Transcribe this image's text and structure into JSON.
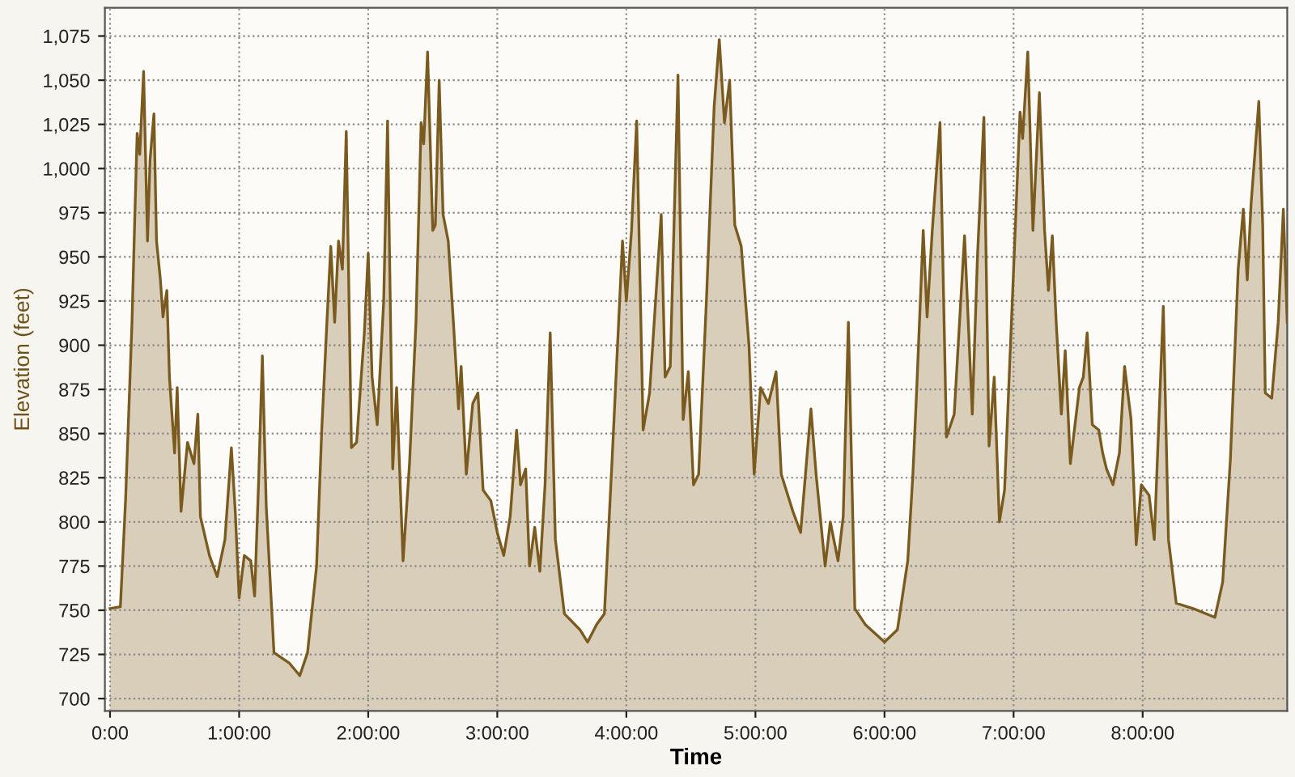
{
  "chart_data": {
    "type": "area",
    "xlabel": "Time",
    "ylabel": "Elevation (feet)",
    "series": [
      {
        "color": "#7a5a1e",
        "x": [
          0,
          0.08,
          0.12,
          0.17,
          0.19,
          0.21,
          0.23,
          0.26,
          0.29,
          0.31,
          0.34,
          0.36,
          0.39,
          0.41,
          0.44,
          0.46,
          0.5,
          0.52,
          0.55,
          0.6,
          0.65,
          0.68,
          0.7,
          0.77,
          0.83,
          0.89,
          0.94,
          0.97,
          1.0,
          1.04,
          1.09,
          1.12,
          1.15,
          1.18,
          1.21,
          1.27,
          1.39,
          1.47,
          1.53,
          1.6,
          1.64,
          1.68,
          1.71,
          1.74,
          1.77,
          1.8,
          1.83,
          1.87,
          1.91,
          1.97,
          2.0,
          2.03,
          2.07,
          2.12,
          2.15,
          2.19,
          2.22,
          2.27,
          2.32,
          2.37,
          2.41,
          2.43,
          2.46,
          2.5,
          2.52,
          2.55,
          2.58,
          2.62,
          2.66,
          2.7,
          2.72,
          2.76,
          2.81,
          2.85,
          2.89,
          2.95,
          3.0,
          3.05,
          3.1,
          3.15,
          3.18,
          3.22,
          3.25,
          3.29,
          3.33,
          3.37,
          3.41,
          3.45,
          3.52,
          3.64,
          3.7,
          3.77,
          3.83,
          3.89,
          3.97,
          4.0,
          4.04,
          4.08,
          4.13,
          4.18,
          4.27,
          4.3,
          4.34,
          4.4,
          4.44,
          4.48,
          4.52,
          4.56,
          4.62,
          4.68,
          4.72,
          4.76,
          4.8,
          4.84,
          4.89,
          4.95,
          4.99,
          5.04,
          5.1,
          5.16,
          5.2,
          5.29,
          5.35,
          5.43,
          5.47,
          5.54,
          5.58,
          5.64,
          5.68,
          5.72,
          5.77,
          5.85,
          6.0,
          6.1,
          6.18,
          6.22,
          6.25,
          6.3,
          6.33,
          6.37,
          6.43,
          6.48,
          6.54,
          6.62,
          6.68,
          6.72,
          6.77,
          6.81,
          6.85,
          6.89,
          6.93,
          7.0,
          7.05,
          7.07,
          7.11,
          7.15,
          7.2,
          7.24,
          7.27,
          7.3,
          7.33,
          7.37,
          7.4,
          7.44,
          7.51,
          7.54,
          7.57,
          7.61,
          7.66,
          7.69,
          7.72,
          7.77,
          7.82,
          7.86,
          7.91,
          7.95,
          7.99,
          8.05,
          8.09,
          8.16,
          8.2,
          8.26,
          8.39,
          8.56,
          8.62,
          8.68,
          8.74,
          8.78,
          8.81,
          8.84,
          8.9,
          8.93,
          8.95,
          9.0,
          9.05,
          9.09,
          9.12
        ],
        "values": [
          751,
          752,
          812,
          913,
          968,
          1020,
          1008,
          1055,
          959,
          1005,
          1031,
          959,
          937,
          916,
          931,
          882,
          839,
          876,
          806,
          845,
          833,
          861,
          803,
          781,
          769,
          790,
          842,
          806,
          757,
          781,
          778,
          758,
          821,
          894,
          809,
          726,
          720,
          713,
          726,
          775,
          852,
          913,
          956,
          913,
          959,
          943,
          1021,
          842,
          845,
          907,
          952,
          882,
          855,
          925,
          1027,
          830,
          876,
          778,
          833,
          913,
          1026,
          1014,
          1066,
          965,
          968,
          1050,
          974,
          959,
          913,
          864,
          888,
          827,
          867,
          873,
          818,
          812,
          794,
          781,
          803,
          852,
          821,
          830,
          775,
          797,
          772,
          821,
          907,
          790,
          748,
          739,
          732,
          742,
          748,
          836,
          959,
          925,
          965,
          1027,
          852,
          873,
          974,
          882,
          888,
          1053,
          858,
          885,
          821,
          827,
          925,
          1035,
          1073,
          1026,
          1050,
          968,
          956,
          900,
          827,
          876,
          867,
          885,
          827,
          806,
          794,
          864,
          827,
          775,
          800,
          778,
          803,
          913,
          751,
          742,
          732,
          739,
          778,
          827,
          876,
          965,
          916,
          965,
          1026,
          848,
          861,
          962,
          861,
          950,
          1029,
          843,
          882,
          800,
          818,
          943,
          1032,
          1017,
          1066,
          965,
          1043,
          965,
          931,
          962,
          913,
          861,
          897,
          833,
          876,
          882,
          907,
          855,
          852,
          839,
          830,
          821,
          839,
          888,
          858,
          787,
          821,
          815,
          790,
          922,
          790,
          754,
          751,
          746,
          766,
          836,
          943,
          977,
          937,
          980,
          1038,
          968,
          873,
          870,
          913,
          977,
          913
        ]
      }
    ],
    "xlim": [
      -0.04,
      9.12
    ],
    "ylim": [
      693,
      1091
    ],
    "xticks": [
      {
        "value": 0,
        "label": "0:00"
      },
      {
        "value": 1,
        "label": "1:00:00"
      },
      {
        "value": 2,
        "label": "2:00:00"
      },
      {
        "value": 3,
        "label": "3:00:00"
      },
      {
        "value": 4,
        "label": "4:00:00"
      },
      {
        "value": 5,
        "label": "5:00:00"
      },
      {
        "value": 6,
        "label": "6:00:00"
      },
      {
        "value": 7,
        "label": "7:00:00"
      },
      {
        "value": 8,
        "label": "8:00:00"
      }
    ],
    "yticks": [
      700,
      725,
      750,
      775,
      800,
      825,
      850,
      875,
      900,
      925,
      950,
      975,
      {
        "value": 1000,
        "label": "1,000"
      },
      {
        "value": 1025,
        "label": "1,025"
      },
      {
        "value": 1050,
        "label": "1,050"
      },
      {
        "value": 1075,
        "label": "1,075"
      }
    ],
    "grid": true,
    "legend": false,
    "line_style": "solid",
    "marker": "none"
  }
}
